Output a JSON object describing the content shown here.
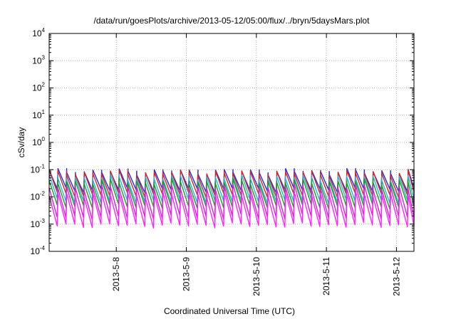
{
  "chart_data": {
    "type": "line",
    "title": "/data/run/goesPlots/archive/2013-05-12/05:00/flux/../bryn/5daysMars.plot",
    "xlabel": "Coordinated Universal Time (UTC)",
    "ylabel": "cSv/day",
    "yscale": "log",
    "ylim": [
      0.0001,
      10000
    ],
    "xlim": [
      "2013-05-07T01:00",
      "2013-05-12T06:00"
    ],
    "grid": true,
    "y_ticks": [
      {
        "base": "10",
        "exp": "-4",
        "value": 0.0001
      },
      {
        "base": "10",
        "exp": "-3",
        "value": 0.001
      },
      {
        "base": "10",
        "exp": "-2",
        "value": 0.01
      },
      {
        "base": "10",
        "exp": "-1",
        "value": 0.1
      },
      {
        "base": "10",
        "exp": "0",
        "value": 1
      },
      {
        "base": "10",
        "exp": "1",
        "value": 10
      },
      {
        "base": "10",
        "exp": "2",
        "value": 100
      },
      {
        "base": "10",
        "exp": "3",
        "value": 1000
      },
      {
        "base": "10",
        "exp": "4",
        "value": 10000
      }
    ],
    "x_ticks": [
      "2013-5-8",
      "2013-5-9",
      "2013-5-10",
      "2013-5-11",
      "2013-5-12"
    ],
    "x_tick_dates": [
      "2013-05-08T00:00",
      "2013-05-09T00:00",
      "2013-05-10T00:00",
      "2013-05-11T00:00",
      "2013-05-12T00:00"
    ],
    "sawtooth_period_hours": 3,
    "series": [
      {
        "color": "#1a2ee6",
        "low": 0.018,
        "high": 0.085
      },
      {
        "color": "#e02020",
        "low": 0.012,
        "high": 0.075
      },
      {
        "color": "#22b8d8",
        "low": 0.007,
        "high": 0.05
      },
      {
        "color": "#19a019",
        "low": 0.0045,
        "high": 0.035
      },
      {
        "color": "#d81fd8",
        "low": 0.0018,
        "high": 0.022
      },
      {
        "color": "#ff22ff",
        "low": 0.0009,
        "high": 0.012
      }
    ]
  }
}
